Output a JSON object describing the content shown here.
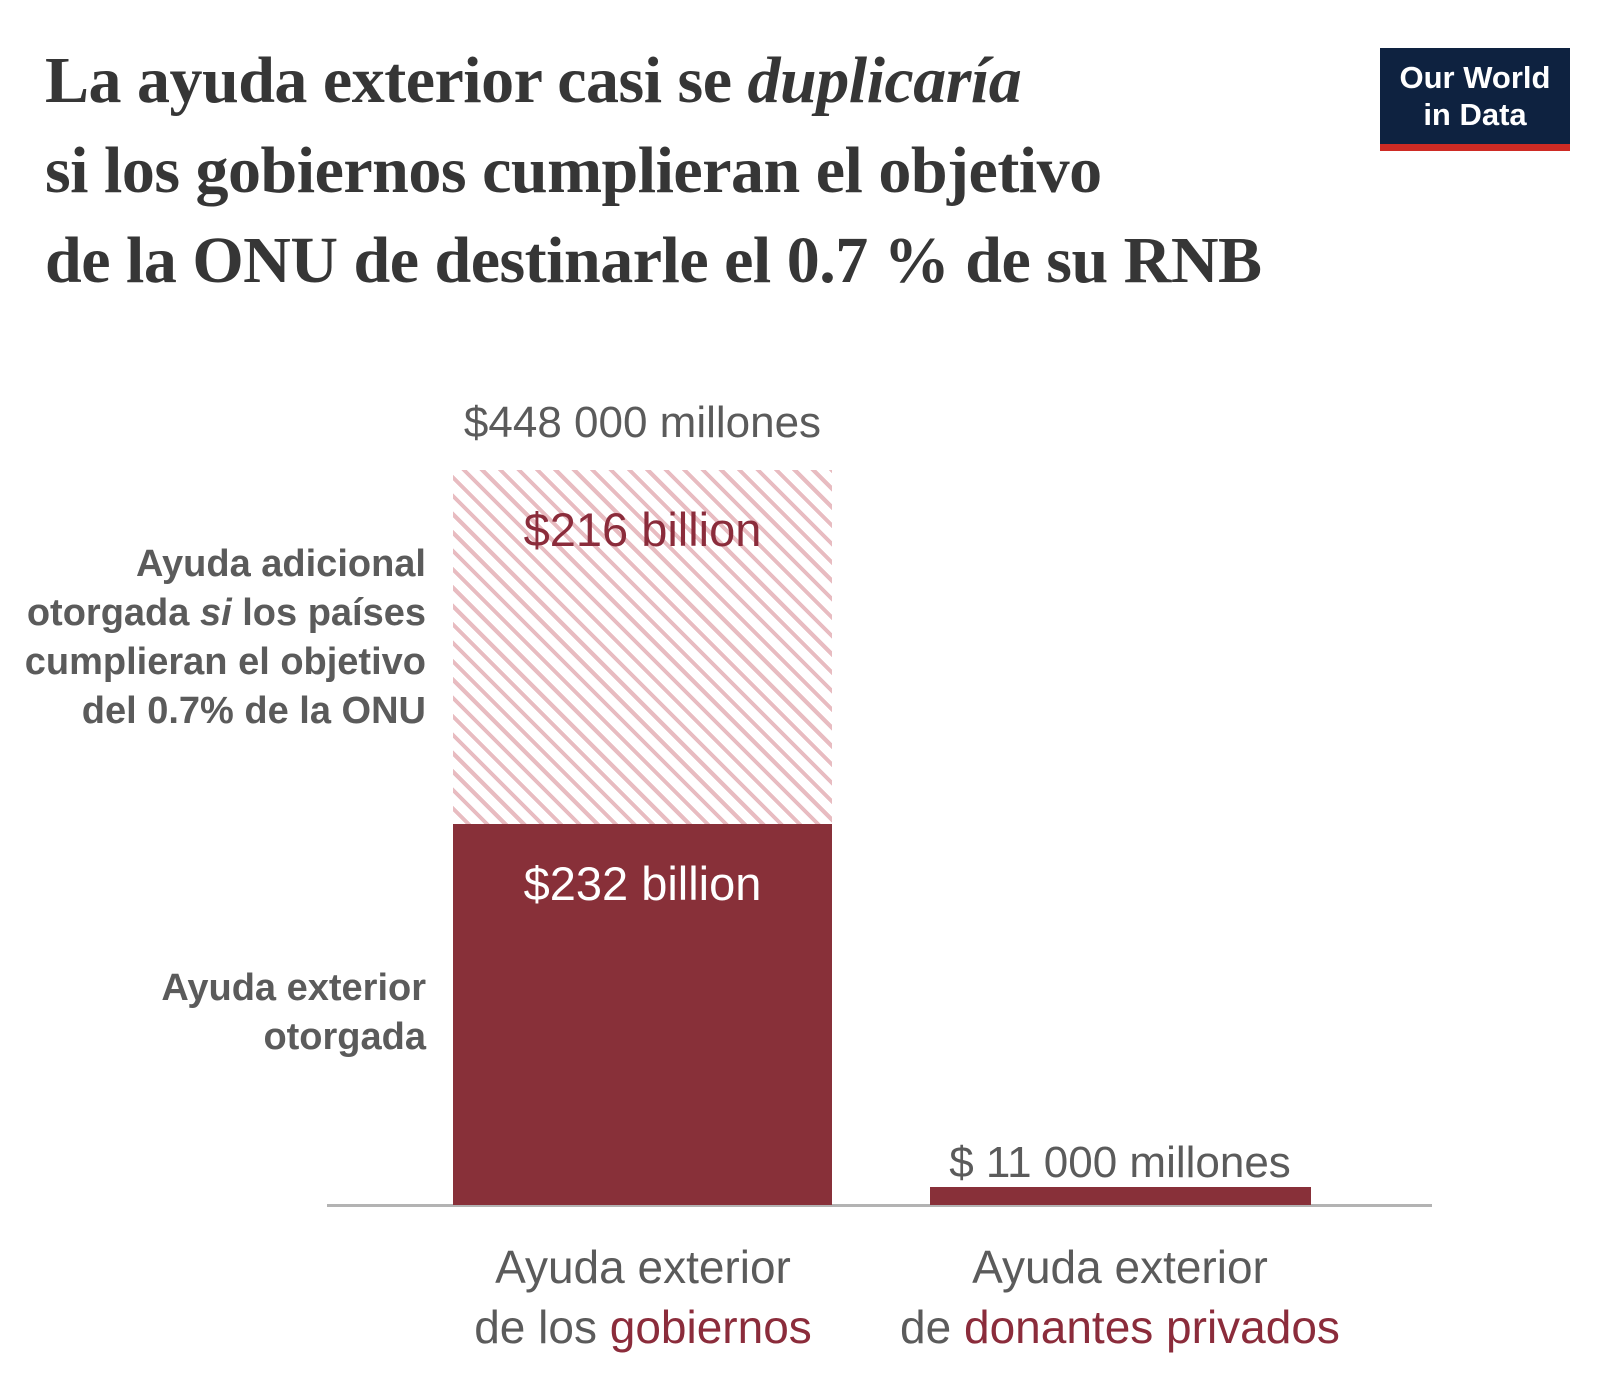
{
  "header": {
    "title": {
      "line1_pre": "La ayuda exterior casi se ",
      "line1_italic": "duplicaría",
      "line2": "si los gobiernos cumplieran el objetivo",
      "line3": "de la ONU de destinarle el 0.7 % de su RNB"
    },
    "logo": {
      "line1": "Our World",
      "line2": "in Data"
    }
  },
  "chart": {
    "bar1": {
      "total_label": "$448 000 millones",
      "hatched_label": "$216 billion",
      "solid_label": "$232 billion",
      "category_line1": "Ayuda exterior",
      "category_line2_pre": "de los ",
      "category_line2_accent": "gobiernos"
    },
    "bar2": {
      "value_label": "$ 11 000 millones",
      "category_line1": "Ayuda exterior",
      "category_line2_pre": "de ",
      "category_line2_accent": "donantes privados"
    },
    "annotation_additional": {
      "line1": "Ayuda adicional",
      "line2_pre": "otorgada ",
      "line2_italic": "si",
      "line2_post": " los países",
      "line3": "cumplieran el objetivo",
      "line4": "del 0.7% de la ONU"
    },
    "annotation_given": {
      "line1": "Ayuda exterior",
      "line2": "otorgada"
    }
  },
  "colors": {
    "bar_red": "#883039",
    "accent_text_red": "#8B2C3B",
    "hatch_pink": "#E8BCC1",
    "gray_text": "#5B5B5B",
    "axis_gray": "#B3B3B3",
    "title_color": "#363636",
    "logo_navy": "#0E2240",
    "logo_red": "#CE2B24"
  },
  "chart_data": {
    "type": "bar",
    "stacked": true,
    "title": "La ayuda exterior casi se duplicaría si los gobiernos cumplieran el objetivo de la ONU de destinarle el 0.7 % de su RNB",
    "categories": [
      "Ayuda exterior de los gobiernos",
      "Ayuda exterior de donantes privados"
    ],
    "series": [
      {
        "name": "Ayuda exterior otorgada",
        "values": [
          232,
          11
        ]
      },
      {
        "name": "Ayuda adicional otorgada si los países cumplieran el objetivo del 0.7% de la ONU",
        "values": [
          216,
          0
        ]
      }
    ],
    "unit": "billions USD",
    "totals_labels": [
      "$448 000 millones",
      "$ 11 000 millones"
    ],
    "segment_labels_bar1": [
      "$232 billion",
      "$216 billion"
    ],
    "ylim": [
      0,
      448
    ],
    "grid": false,
    "legend": "none-direct-annotations",
    "hatched_series_index": 1
  }
}
